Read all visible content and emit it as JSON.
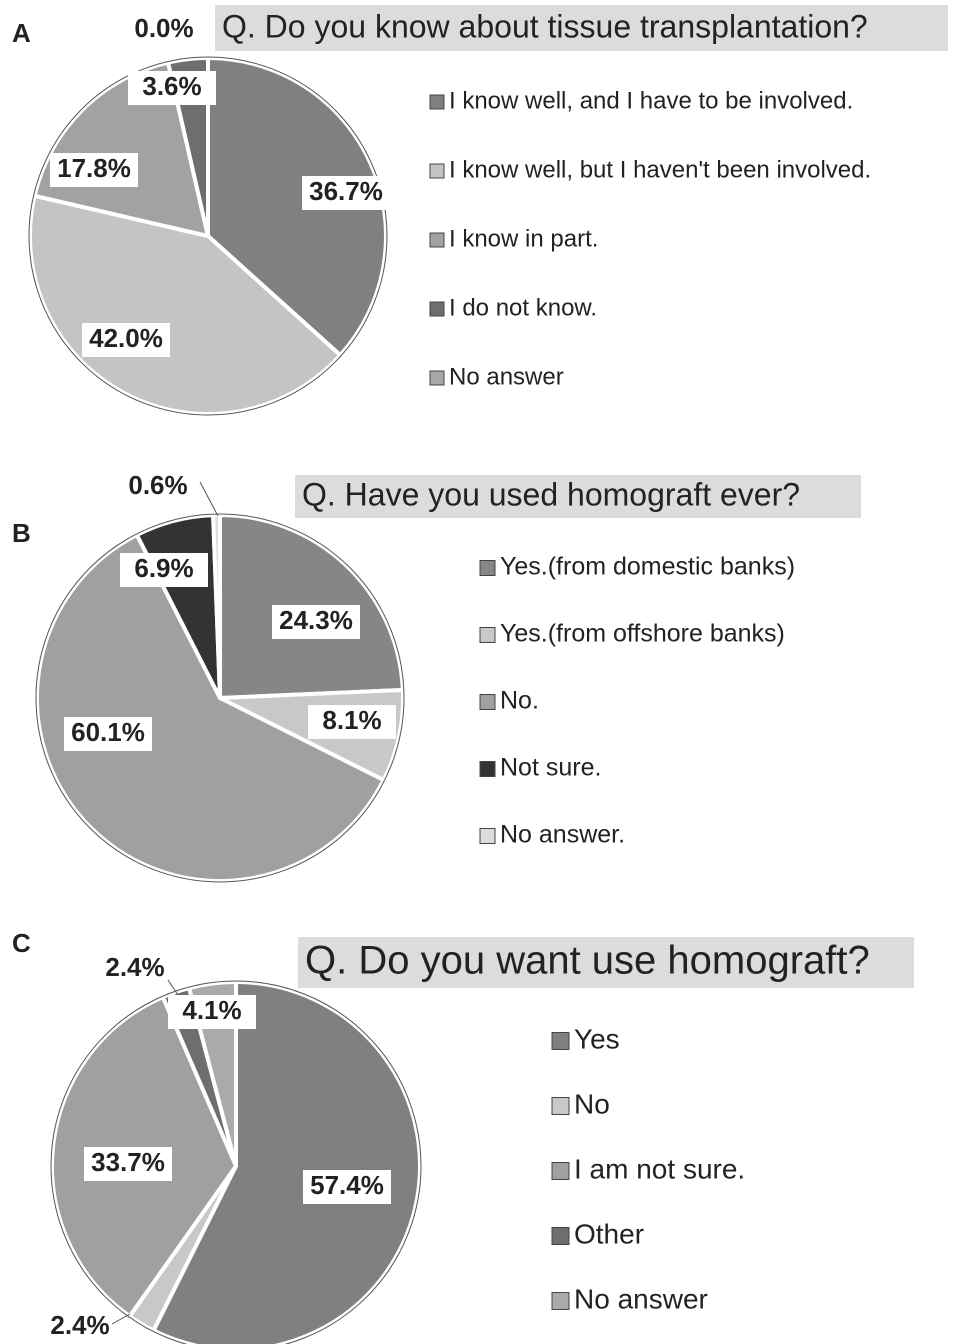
{
  "chart_data": [
    {
      "type": "pie",
      "panel": "A",
      "title": "Q. Do you know about tissue transplantation?",
      "categories": [
        "I know well, and I have to be involved.",
        "I know well, but I haven't been involved.",
        "I know in part.",
        "I do not know.",
        "No answer"
      ],
      "values": [
        36.7,
        42.0,
        17.8,
        3.6,
        0.0
      ],
      "value_labels": [
        "36.7%",
        "42.0%",
        "17.8%",
        "3.6%",
        "0.0%"
      ],
      "colors": [
        "#808080",
        "#c4c4c4",
        "#a2a2a2",
        "#6e6e6e",
        "#a8a8a8"
      ]
    },
    {
      "type": "pie",
      "panel": "B",
      "title": "Q. Have you used homograft ever?",
      "categories": [
        "Yes.(from domestic banks)",
        "Yes.(from offshore banks)",
        "No.",
        "Not sure.",
        "No answer."
      ],
      "values": [
        24.3,
        8.1,
        60.1,
        6.9,
        0.6
      ],
      "value_labels": [
        "24.3%",
        "8.1%",
        "60.1%",
        "6.9%",
        "0.6%"
      ],
      "colors": [
        "#868686",
        "#c8c8c8",
        "#a0a0a0",
        "#333333",
        "#dddddd"
      ]
    },
    {
      "type": "pie",
      "panel": "C",
      "title": "Q. Do you want use homograft?",
      "categories": [
        "Yes",
        "No",
        "I am not sure.",
        "Other",
        "No answer"
      ],
      "values": [
        57.4,
        2.4,
        33.7,
        2.4,
        4.1
      ],
      "value_labels": [
        "57.4%",
        "2.4%",
        "33.7%",
        "2.4%",
        "4.1%"
      ],
      "colors": [
        "#808080",
        "#c8c8c8",
        "#a0a0a0",
        "#6e6e6e",
        "#aaaaaa"
      ]
    }
  ]
}
